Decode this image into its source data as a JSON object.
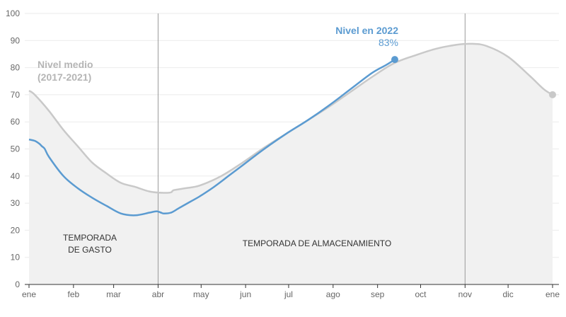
{
  "chart_data": {
    "type": "area",
    "xlabel": "",
    "ylabel": "",
    "ylim": [
      0,
      100
    ],
    "yticks": [
      0,
      10,
      20,
      30,
      40,
      50,
      60,
      70,
      80,
      90,
      100
    ],
    "month_labels": [
      "ene",
      "feb",
      "mar",
      "abr",
      "may",
      "jun",
      "jul",
      "ago",
      "sep",
      "oct",
      "nov",
      "dic",
      "ene"
    ],
    "grid": true,
    "series": [
      {
        "name": "Nivel medio (2017-2021)",
        "color": "#c9c9c9",
        "x": [
          1,
          5,
          15,
          25,
          35,
          45,
          55,
          65,
          75,
          85,
          95,
          100,
          102,
          110,
          120,
          135,
          150,
          165,
          180,
          195,
          210,
          225,
          240,
          255,
          270,
          285,
          300,
          310,
          320,
          335,
          350,
          360,
          366
        ],
        "values": [
          71.5,
          70,
          64,
          57,
          51,
          45,
          41,
          37.5,
          36,
          34.3,
          33.8,
          34,
          34.8,
          35.5,
          36.5,
          40,
          45,
          50.5,
          55.5,
          60.5,
          65.5,
          71,
          76.5,
          81.5,
          84.5,
          87,
          88.5,
          88.8,
          88,
          84,
          77,
          72,
          70
        ]
      },
      {
        "name": "Nivel en 2022",
        "color": "#5b9bd1",
        "x": [
          1,
          5,
          8,
          10,
          12,
          15,
          25,
          35,
          45,
          55,
          65,
          75,
          85,
          90,
          93,
          95,
          100,
          105,
          110,
          115,
          120,
          130,
          140,
          150,
          165,
          180,
          195,
          210,
          225,
          240,
          250,
          256
        ],
        "values": [
          53.5,
          53,
          52,
          51,
          50,
          47,
          40,
          35.5,
          32,
          29,
          26.2,
          25.5,
          26.5,
          27,
          26.5,
          26.2,
          26.5,
          28,
          29.5,
          31,
          32.5,
          36,
          40,
          44,
          50,
          55.5,
          60.5,
          66,
          72,
          78,
          81,
          83
        ]
      }
    ],
    "annotations": {
      "medio_label_line1": "Nivel medio",
      "medio_label_line2": "(2017-2021)",
      "nivel_label": "Nivel en 2022",
      "nivel_value": "83%",
      "season_spend_line1": "TEMPORADA",
      "season_spend_line2": "DE GASTO",
      "season_store": "TEMPORADA DE ALMACENAMIENTO"
    }
  }
}
